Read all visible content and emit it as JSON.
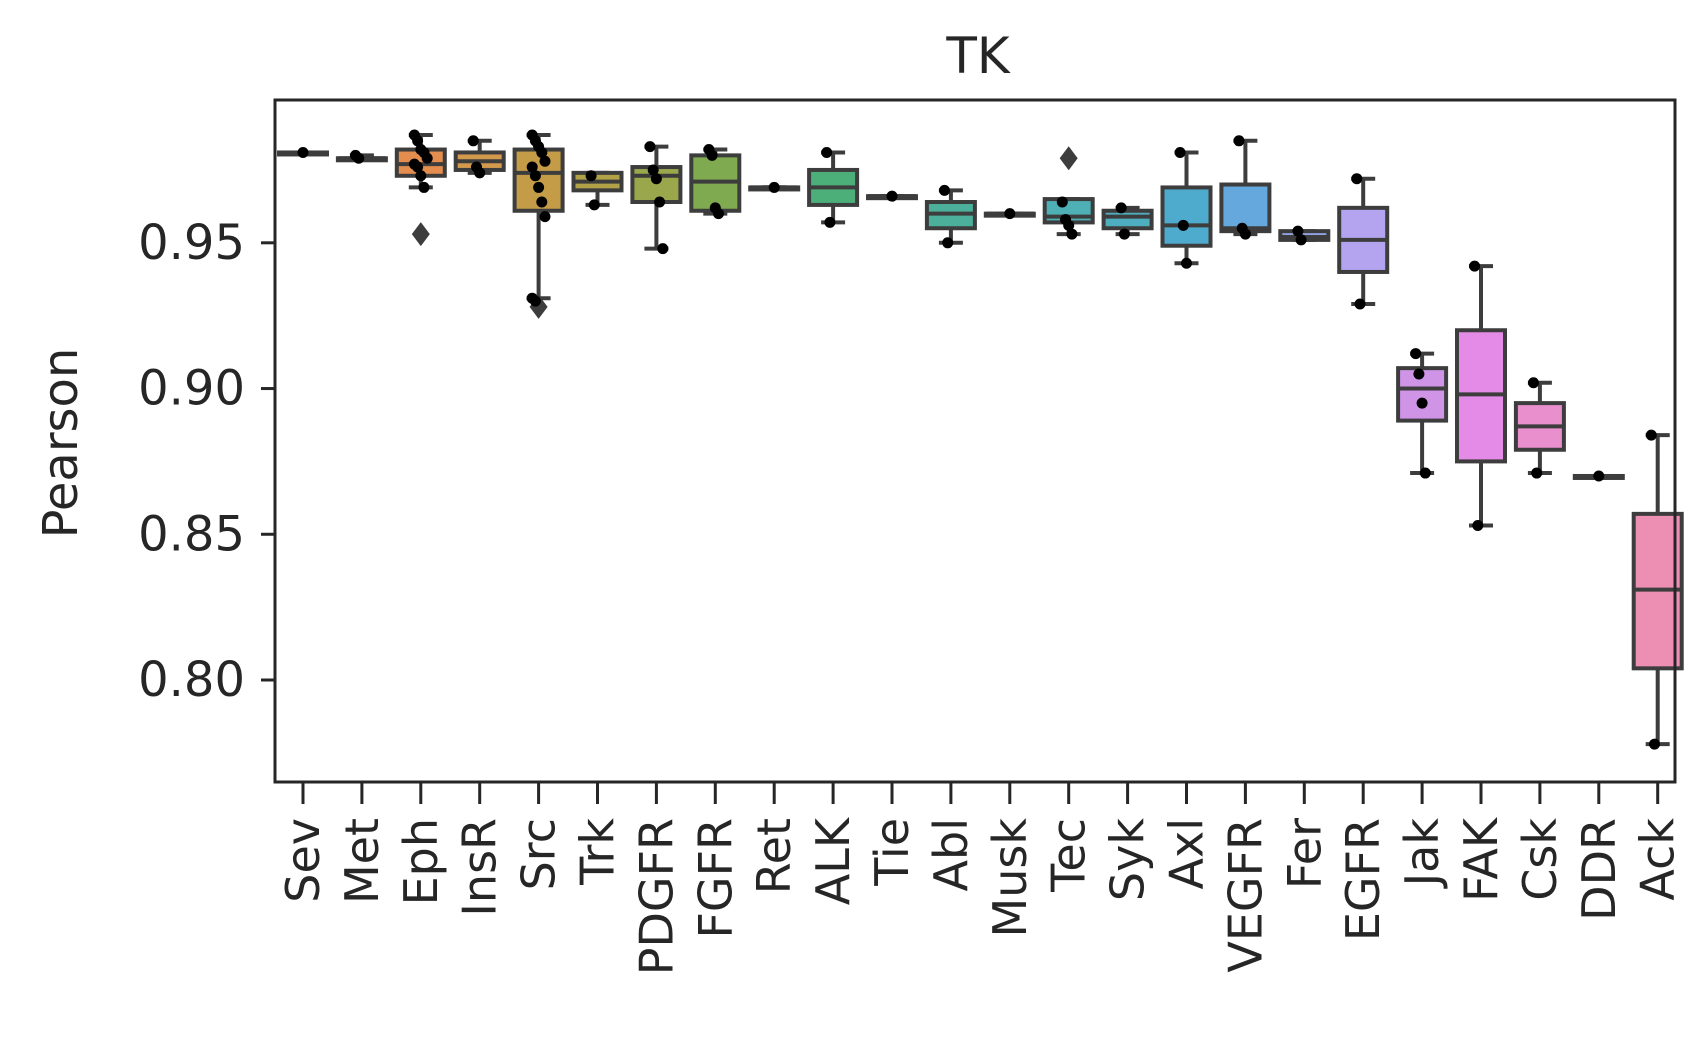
{
  "chart_data": {
    "type": "box",
    "title": "TK",
    "xlabel": "",
    "ylabel": "Pearson",
    "ylim": [
      0.765,
      0.999
    ],
    "yticks": [
      0.8,
      0.85,
      0.9,
      0.95
    ],
    "ytick_labels": [
      "0.80",
      "0.85",
      "0.90",
      "0.95"
    ],
    "grid": false,
    "categories": [
      {
        "name": "Sev",
        "color": "#e8e8e8",
        "q1": 0.981,
        "median": 0.981,
        "q3": 0.981,
        "whisker_low": 0.981,
        "whisker_high": 0.981,
        "points": [
          0.981
        ],
        "outliers": []
      },
      {
        "name": "Met",
        "color": "#e8e8e8",
        "q1": 0.979,
        "median": 0.979,
        "q3": 0.979,
        "whisker_low": 0.979,
        "whisker_high": 0.98,
        "points": [
          0.98,
          0.979
        ],
        "outliers": []
      },
      {
        "name": "Eph",
        "color": "#e38d4e",
        "q1": 0.973,
        "median": 0.977,
        "q3": 0.982,
        "whisker_low": 0.969,
        "whisker_high": 0.987,
        "points": [
          0.987,
          0.985,
          0.982,
          0.981,
          0.979,
          0.977,
          0.976,
          0.973,
          0.969
        ],
        "outliers": [
          0.953
        ]
      },
      {
        "name": "InsR",
        "color": "#d39a4e",
        "q1": 0.975,
        "median": 0.978,
        "q3": 0.981,
        "whisker_low": 0.974,
        "whisker_high": 0.985,
        "points": [
          0.985,
          0.976,
          0.974
        ],
        "outliers": []
      },
      {
        "name": "Src",
        "color": "#c49c47",
        "q1": 0.961,
        "median": 0.974,
        "q3": 0.982,
        "whisker_low": 0.931,
        "whisker_high": 0.987,
        "points": [
          0.987,
          0.985,
          0.983,
          0.981,
          0.978,
          0.976,
          0.973,
          0.969,
          0.964,
          0.959,
          0.931,
          0.93
        ],
        "outliers": [
          0.928
        ]
      },
      {
        "name": "Trk",
        "color": "#b1a247",
        "q1": 0.968,
        "median": 0.971,
        "q3": 0.974,
        "whisker_low": 0.963,
        "whisker_high": 0.974,
        "points": [
          0.973,
          0.963
        ],
        "outliers": []
      },
      {
        "name": "PDGFR",
        "color": "#9aa74b",
        "q1": 0.964,
        "median": 0.973,
        "q3": 0.976,
        "whisker_low": 0.948,
        "whisker_high": 0.983,
        "points": [
          0.983,
          0.975,
          0.972,
          0.964,
          0.948
        ],
        "outliers": []
      },
      {
        "name": "FGFR",
        "color": "#7faa4f",
        "q1": 0.961,
        "median": 0.971,
        "q3": 0.98,
        "whisker_low": 0.96,
        "whisker_high": 0.982,
        "points": [
          0.982,
          0.98,
          0.962,
          0.96
        ],
        "outliers": []
      },
      {
        "name": "Ret",
        "color": "#5cab61",
        "q1": 0.969,
        "median": 0.969,
        "q3": 0.969,
        "whisker_low": 0.969,
        "whisker_high": 0.969,
        "points": [
          0.969
        ],
        "outliers": []
      },
      {
        "name": "ALK",
        "color": "#4cae79",
        "q1": 0.963,
        "median": 0.969,
        "q3": 0.975,
        "whisker_low": 0.957,
        "whisker_high": 0.981,
        "points": [
          0.981,
          0.957
        ],
        "outliers": []
      },
      {
        "name": "Tie",
        "color": "#4caf8e",
        "q1": 0.966,
        "median": 0.966,
        "q3": 0.966,
        "whisker_low": 0.966,
        "whisker_high": 0.966,
        "points": [
          0.966
        ],
        "outliers": []
      },
      {
        "name": "Abl",
        "color": "#4caf9b",
        "q1": 0.955,
        "median": 0.96,
        "q3": 0.964,
        "whisker_low": 0.95,
        "whisker_high": 0.968,
        "points": [
          0.968,
          0.95
        ],
        "outliers": []
      },
      {
        "name": "Musk",
        "color": "#4cafa6",
        "q1": 0.96,
        "median": 0.96,
        "q3": 0.96,
        "whisker_low": 0.96,
        "whisker_high": 0.96,
        "points": [
          0.96
        ],
        "outliers": []
      },
      {
        "name": "Tec",
        "color": "#4eb0b5",
        "q1": 0.957,
        "median": 0.959,
        "q3": 0.965,
        "whisker_low": 0.953,
        "whisker_high": 0.965,
        "points": [
          0.964,
          0.958,
          0.956,
          0.953
        ],
        "outliers": [
          0.979
        ]
      },
      {
        "name": "Syk",
        "color": "#4eaec0",
        "q1": 0.955,
        "median": 0.959,
        "q3": 0.961,
        "whisker_low": 0.953,
        "whisker_high": 0.962,
        "points": [
          0.962,
          0.953
        ],
        "outliers": []
      },
      {
        "name": "Axl",
        "color": "#4fabcd",
        "q1": 0.949,
        "median": 0.956,
        "q3": 0.969,
        "whisker_low": 0.943,
        "whisker_high": 0.981,
        "points": [
          0.981,
          0.956,
          0.943
        ],
        "outliers": []
      },
      {
        "name": "VEGFR",
        "color": "#65a8dd",
        "q1": 0.954,
        "median": 0.955,
        "q3": 0.97,
        "whisker_low": 0.953,
        "whisker_high": 0.985,
        "points": [
          0.985,
          0.955,
          0.953
        ],
        "outliers": []
      },
      {
        "name": "Fer",
        "color": "#94a3e4",
        "q1": 0.951,
        "median": 0.952,
        "q3": 0.954,
        "whisker_low": 0.951,
        "whisker_high": 0.954,
        "points": [
          0.954,
          0.951
        ],
        "outliers": []
      },
      {
        "name": "EGFR",
        "color": "#b4a3ee",
        "q1": 0.94,
        "median": 0.951,
        "q3": 0.962,
        "whisker_low": 0.929,
        "whisker_high": 0.972,
        "points": [
          0.972,
          0.929
        ],
        "outliers": []
      },
      {
        "name": "Jak",
        "color": "#cf94e6",
        "q1": 0.889,
        "median": 0.9,
        "q3": 0.907,
        "whisker_low": 0.871,
        "whisker_high": 0.912,
        "points": [
          0.912,
          0.905,
          0.895,
          0.871
        ],
        "outliers": []
      },
      {
        "name": "FAK",
        "color": "#e38be6",
        "q1": 0.875,
        "median": 0.898,
        "q3": 0.92,
        "whisker_low": 0.853,
        "whisker_high": 0.942,
        "points": [
          0.942,
          0.853
        ],
        "outliers": []
      },
      {
        "name": "Csk",
        "color": "#ea8fce",
        "q1": 0.879,
        "median": 0.887,
        "q3": 0.895,
        "whisker_low": 0.871,
        "whisker_high": 0.902,
        "points": [
          0.902,
          0.871
        ],
        "outliers": []
      },
      {
        "name": "DDR",
        "color": "#ea8fc0",
        "q1": 0.87,
        "median": 0.87,
        "q3": 0.87,
        "whisker_low": 0.87,
        "whisker_high": 0.87,
        "points": [
          0.87
        ],
        "outliers": []
      },
      {
        "name": "Ack",
        "color": "#ec8fb3",
        "q1": 0.804,
        "median": 0.831,
        "q3": 0.857,
        "whisker_low": 0.778,
        "whisker_high": 0.884,
        "points": [
          0.884,
          0.778
        ],
        "outliers": []
      }
    ]
  }
}
